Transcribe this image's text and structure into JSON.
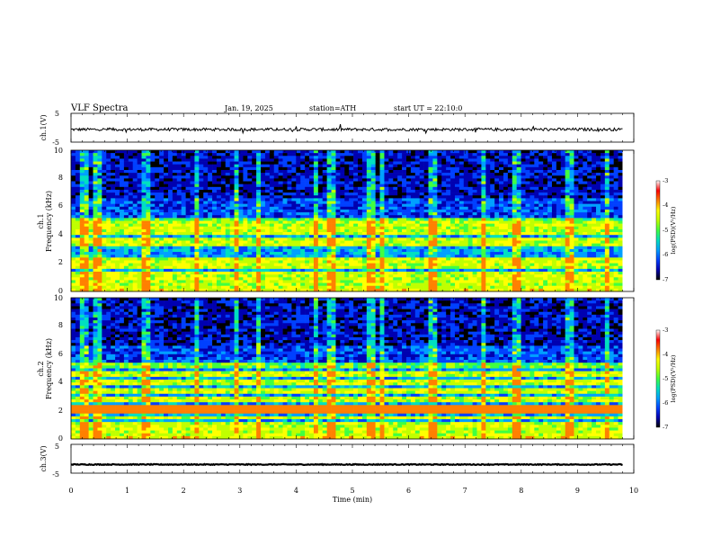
{
  "header": {
    "title": "VLF Spectra",
    "date": "Jan. 19, 2025",
    "station": "station=ATH",
    "start_ut": "start UT =  22:10:0"
  },
  "colors": {
    "background": "#ffffff",
    "waveform": "#000000",
    "colormap": [
      "#000000",
      "#0000b0",
      "#0040ff",
      "#00a0ff",
      "#00e0c0",
      "#40ff40",
      "#c0ff00",
      "#ffff00",
      "#ff8000",
      "#ff0000",
      "#ffffff"
    ]
  },
  "chart_data": [
    {
      "type": "line",
      "name": "ch1-waveform",
      "ylabel": "ch.1(V)",
      "xlim": [
        0,
        10
      ],
      "ylim": [
        -5,
        5
      ],
      "yticks": [
        "5",
        "-5"
      ],
      "baseline": -0.6,
      "noise_amplitude": 0.5
    },
    {
      "type": "heatmap",
      "name": "ch1-spectrogram",
      "ylabel": [
        "ch.1",
        "Frequency (kHz)"
      ],
      "xlim": [
        0,
        10
      ],
      "ylim": [
        0,
        10
      ],
      "yticks": [
        "0",
        "2",
        "4",
        "6",
        "8",
        "10"
      ],
      "colorbar": {
        "label": "log(PSD)(V²/Hz)",
        "ticks": [
          "-3",
          "-4",
          "-5",
          "-6",
          "-7"
        ],
        "range": [
          -7,
          -3
        ]
      },
      "bands_khz": [
        0.3,
        0.6,
        0.9,
        1.2,
        1.8,
        2.1,
        2.3,
        3.3,
        3.6,
        4.2,
        4.6,
        5.0
      ],
      "sferic_times_min": [
        0.2,
        0.45,
        1.3,
        2.2,
        2.9,
        3.3,
        4.3,
        4.6,
        5.3,
        5.5,
        6.4,
        7.3,
        7.9,
        8.8,
        9.5
      ]
    },
    {
      "type": "heatmap",
      "name": "ch2-spectrogram",
      "ylabel": [
        "ch.2",
        "Frequency (kHz)"
      ],
      "xlim": [
        0,
        10
      ],
      "ylim": [
        0,
        10
      ],
      "yticks": [
        "0",
        "2",
        "4",
        "6",
        "8",
        "10"
      ],
      "colorbar": {
        "label": "log(PSD)(V²/Hz)",
        "ticks": [
          "-3",
          "-4",
          "-5",
          "-6",
          "-7"
        ],
        "range": [
          -7,
          -3
        ]
      },
      "bands_khz": [
        0.3,
        0.6,
        1.0,
        1.5,
        2.0,
        2.2,
        2.8,
        3.4,
        4.0,
        4.6,
        5.2
      ],
      "sferic_times_min": [
        0.2,
        0.45,
        1.3,
        2.2,
        2.9,
        3.3,
        4.3,
        4.6,
        5.3,
        5.5,
        6.4,
        7.3,
        7.9,
        8.8,
        9.5
      ]
    },
    {
      "type": "line",
      "name": "ch3-waveform",
      "ylabel": "ch.3(V)",
      "xlabel": "Time (min)",
      "xlim": [
        0,
        10
      ],
      "ylim": [
        -5,
        5
      ],
      "yticks": [
        "5",
        "-5"
      ],
      "xticks": [
        "0",
        "1",
        "2",
        "3",
        "4",
        "5",
        "6",
        "7",
        "8",
        "9",
        "10"
      ],
      "baseline": -2.0,
      "noise_amplitude": 0.15
    }
  ]
}
